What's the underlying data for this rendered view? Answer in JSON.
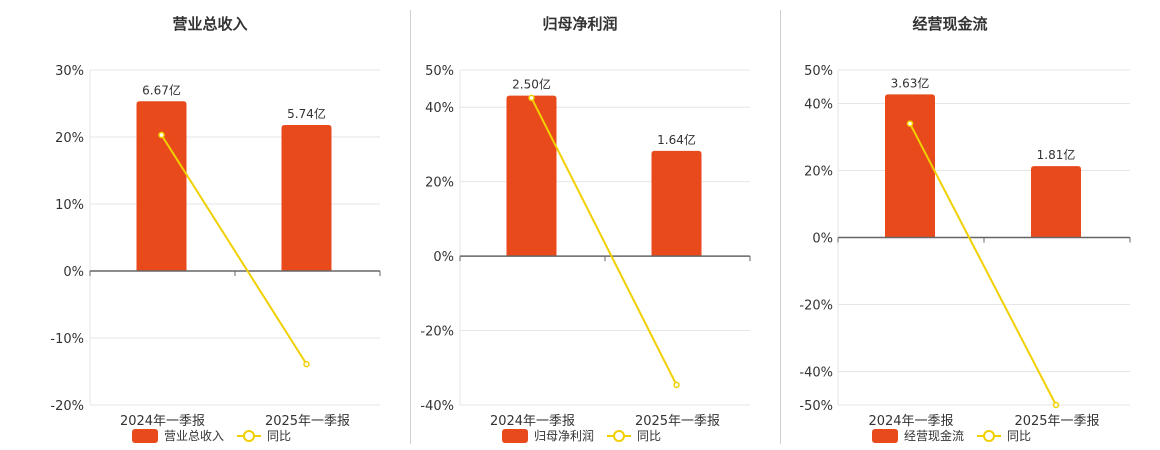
{
  "colors": {
    "bar": "#e84a1c",
    "line": "#f0d000",
    "grid": "#e6e6e6",
    "axis": "#666666",
    "text": "#333333"
  },
  "chart_data": [
    {
      "type": "bar",
      "title": "营业总收入",
      "categories": [
        "2024年一季报",
        "2025年一季报"
      ],
      "series": [
        {
          "name": "营业总收入",
          "type": "bar",
          "values": [
            6.67,
            5.74
          ],
          "labels": [
            "6.67亿",
            "5.74亿"
          ]
        },
        {
          "name": "同比",
          "type": "line",
          "values": [
            20.3,
            -13.9
          ]
        }
      ],
      "y_ticks": [
        "30%",
        "20%",
        "10%",
        "0%",
        "-10%",
        "-20%"
      ],
      "ylim": [
        -20,
        30
      ],
      "bar_axis_max": 7.9,
      "legend": "bottom-center",
      "grid": true
    },
    {
      "type": "bar",
      "title": "归母净利润",
      "categories": [
        "2024年一季报",
        "2025年一季报"
      ],
      "series": [
        {
          "name": "归母净利润",
          "type": "bar",
          "values": [
            2.5,
            1.64
          ],
          "labels": [
            "2.50亿",
            "1.64亿"
          ]
        },
        {
          "name": "同比",
          "type": "line",
          "values": [
            42.5,
            -34.6
          ]
        }
      ],
      "y_ticks": [
        "50%",
        "40%",
        "20%",
        "0%",
        "-20%",
        "-40%"
      ],
      "ylim": [
        -40,
        50
      ],
      "bar_axis_max": 2.9,
      "legend": "bottom-center",
      "grid": true
    },
    {
      "type": "bar",
      "title": "经营现金流",
      "categories": [
        "2024年一季报",
        "2025年一季报"
      ],
      "series": [
        {
          "name": "经营现金流",
          "type": "bar",
          "values": [
            3.63,
            1.81
          ],
          "labels": [
            "3.63亿",
            "1.81亿"
          ]
        },
        {
          "name": "同比",
          "type": "line",
          "values": [
            34.0,
            -50.0
          ]
        }
      ],
      "y_ticks": [
        "50%",
        "40%",
        "20%",
        "0%",
        "-20%",
        "-40%",
        "-50%"
      ],
      "ylim": [
        -50,
        50
      ],
      "bar_axis_max": 4.25,
      "legend": "bottom-center",
      "grid": true
    }
  ]
}
